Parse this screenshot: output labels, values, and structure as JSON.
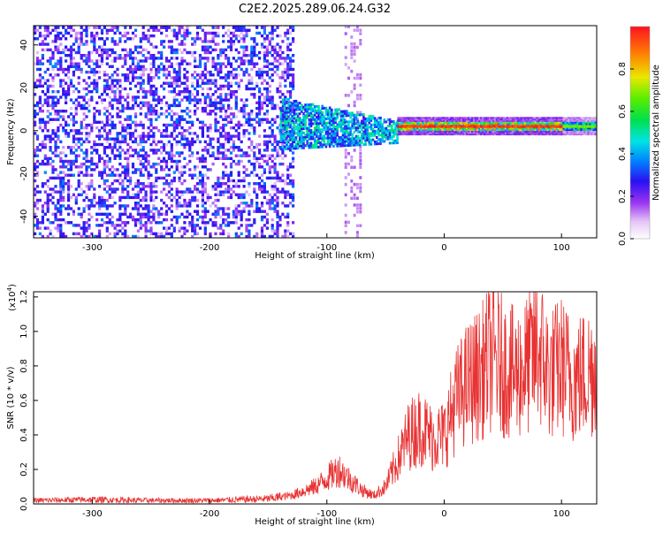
{
  "title": "C2E2.2025.289.06.24.G32",
  "chart_data": [
    {
      "type": "heatmap",
      "title": "C2E2.2025.289.06.24.G32",
      "xlabel": "Height of straight line (km)",
      "ylabel": "Frequency (Hz)",
      "xlim": [
        -350,
        130
      ],
      "ylim": [
        -50,
        49
      ],
      "xticks": [
        -300,
        -200,
        -100,
        0,
        100
      ],
      "yticks": [
        -40,
        -20,
        0,
        20,
        40
      ],
      "grid": false,
      "colorbar": {
        "label": "Normalized spectral amplitude",
        "range": [
          0,
          1
        ],
        "ticks": [
          0.0,
          0.2,
          0.4,
          0.6,
          0.8
        ]
      },
      "regions": [
        {
          "name": "broadband noise",
          "x": [
            -350,
            -128
          ],
          "freq": [
            -50,
            49
          ],
          "amplitude": 0.25
        },
        {
          "name": "transition",
          "x": [
            -140,
            -40
          ],
          "freq": [
            -10,
            10
          ],
          "amplitude": 0.45
        },
        {
          "name": "sparse column",
          "x": [
            -85,
            -70
          ],
          "freq": [
            -50,
            49
          ],
          "amplitude": 0.1
        },
        {
          "name": "narrowband signal",
          "x": [
            -40,
            130
          ],
          "freq": [
            0,
            4
          ],
          "amplitude": 0.9
        }
      ]
    },
    {
      "type": "line",
      "xlabel": "Height of straight line (km)",
      "ylabel": "SNR (10 * v/v)",
      "yscale_label": "(x10",
      "yscale_exponent": "4",
      "yscale_suffix": ")",
      "xlim": [
        -350,
        130
      ],
      "ylim": [
        0,
        1.23
      ],
      "xticks": [
        -300,
        -200,
        -100,
        0,
        100
      ],
      "yticks": [
        0.0,
        0.2,
        0.4,
        0.6,
        0.8,
        1.0,
        1.2
      ],
      "grid": false,
      "series": [
        {
          "name": "SNR",
          "color": "#e83232",
          "x": [
            -350,
            -300,
            -250,
            -200,
            -150,
            -130,
            -110,
            -100,
            -90,
            -80,
            -70,
            -60,
            -50,
            -40,
            -30,
            -20,
            -10,
            0,
            10,
            20,
            30,
            40,
            50,
            60,
            70,
            80,
            90,
            100,
            110,
            120,
            130
          ],
          "y": [
            0.02,
            0.025,
            0.02,
            0.02,
            0.03,
            0.05,
            0.1,
            0.15,
            0.2,
            0.14,
            0.08,
            0.05,
            0.1,
            0.25,
            0.4,
            0.45,
            0.38,
            0.4,
            0.6,
            0.7,
            0.75,
            0.85,
            0.8,
            0.75,
            0.8,
            0.9,
            0.75,
            0.8,
            0.72,
            0.75,
            0.8
          ]
        }
      ]
    }
  ]
}
